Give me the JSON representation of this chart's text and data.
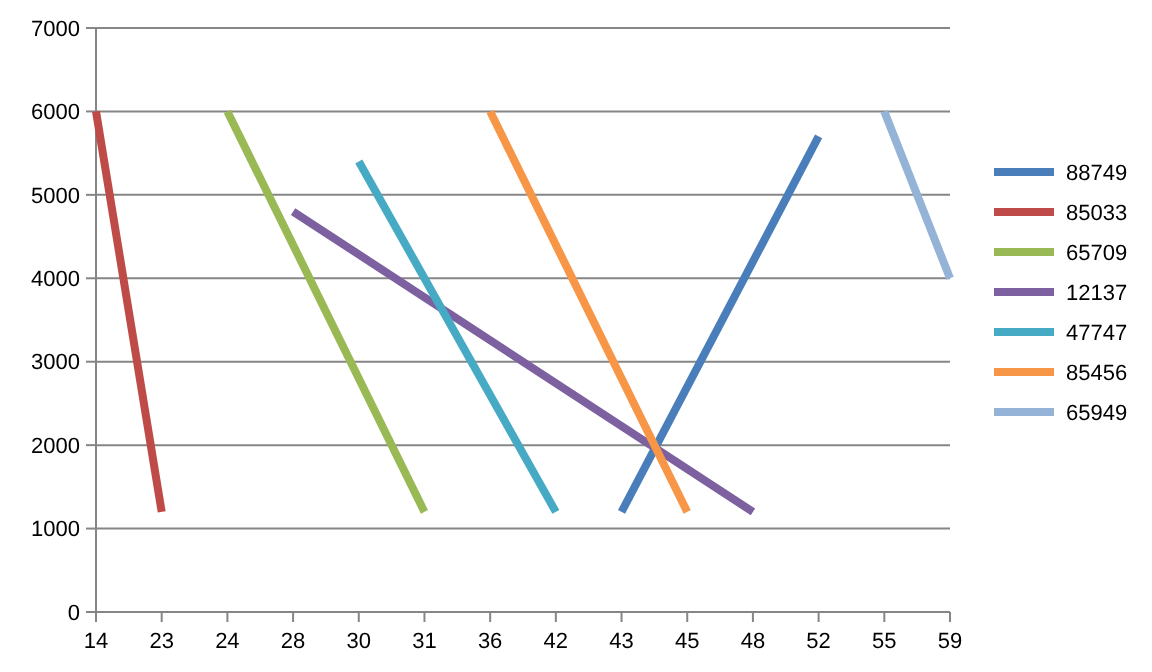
{
  "chart_data": {
    "type": "line",
    "categories": [
      "14",
      "23",
      "24",
      "28",
      "30",
      "31",
      "36",
      "42",
      "43",
      "45",
      "48",
      "52",
      "55",
      "59"
    ],
    "series": [
      {
        "name": "88749",
        "color": "#4a7ebb",
        "values": [
          null,
          null,
          null,
          null,
          null,
          null,
          null,
          null,
          1200,
          null,
          null,
          5700,
          null,
          null
        ]
      },
      {
        "name": "85033",
        "color": "#be4b48",
        "values": [
          6000,
          1200,
          null,
          null,
          null,
          null,
          null,
          null,
          null,
          null,
          null,
          null,
          null,
          null
        ]
      },
      {
        "name": "65709",
        "color": "#98b954",
        "values": [
          null,
          null,
          6000,
          null,
          null,
          1200,
          null,
          null,
          null,
          null,
          null,
          null,
          null,
          null
        ]
      },
      {
        "name": "12137",
        "color": "#7d60a0",
        "values": [
          null,
          null,
          null,
          4800,
          null,
          null,
          null,
          null,
          null,
          null,
          1200,
          null,
          null,
          null
        ]
      },
      {
        "name": "47747",
        "color": "#46aac5",
        "values": [
          null,
          null,
          null,
          null,
          5400,
          null,
          null,
          1200,
          null,
          null,
          null,
          null,
          null,
          null
        ]
      },
      {
        "name": "85456",
        "color": "#f79646",
        "values": [
          null,
          null,
          null,
          null,
          null,
          null,
          6000,
          null,
          null,
          1200,
          null,
          null,
          null,
          null
        ]
      },
      {
        "name": "65949",
        "color": "#95b3d7",
        "values": [
          null,
          null,
          null,
          null,
          null,
          null,
          null,
          null,
          null,
          null,
          null,
          null,
          6000,
          4000
        ]
      }
    ],
    "ylim": [
      0,
      7000
    ],
    "yticks": [
      0,
      1000,
      2000,
      3000,
      4000,
      5000,
      6000,
      7000
    ],
    "grid": "y",
    "legend": "right",
    "marker": "none",
    "line_style": "solid"
  }
}
